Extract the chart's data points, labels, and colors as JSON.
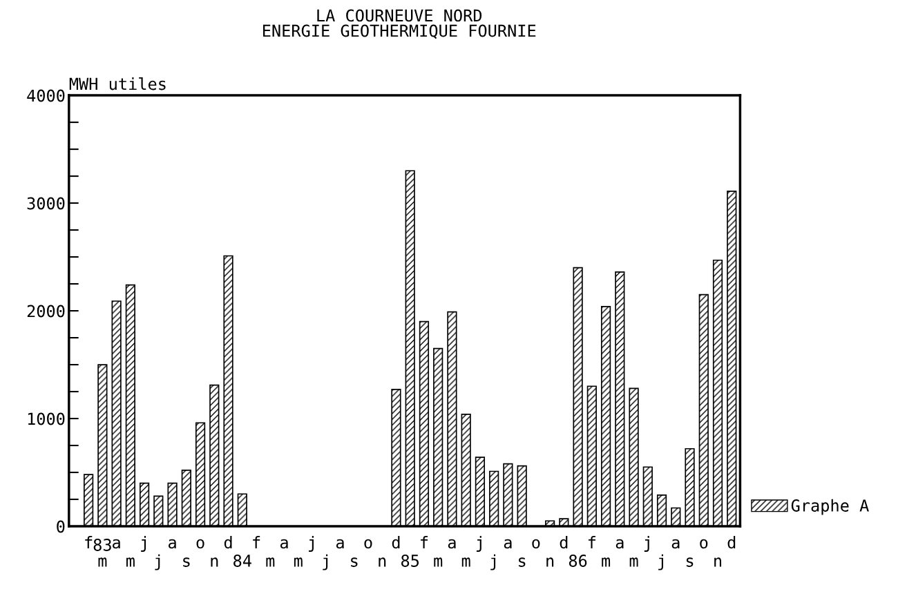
{
  "chart_data": {
    "type": "bar",
    "title": "LA COURNEUVE NORD\nENERGIE GEOTHERMIQUE FOURNIE",
    "ylabel": "MWH utiles",
    "categories": [
      "f",
      "m",
      "a",
      "m",
      "j",
      "j",
      "a",
      "s",
      "o",
      "n",
      "d",
      "84",
      "f",
      "m",
      "a",
      "m",
      "j",
      "j",
      "a",
      "s",
      "o",
      "n",
      "d",
      "85",
      "f",
      "m",
      "a",
      "m",
      "j",
      "j",
      "a",
      "s",
      "o",
      "n",
      "d",
      "86",
      "f",
      "m",
      "a",
      "m",
      "j",
      "j",
      "a",
      "s",
      "o",
      "n",
      "d"
    ],
    "series": [
      {
        "name": "Graphe A",
        "color": "#000000",
        "values": [
          480,
          1500,
          2090,
          2240,
          400,
          280,
          400,
          520,
          960,
          1310,
          2510,
          300,
          null,
          null,
          null,
          null,
          null,
          null,
          null,
          null,
          null,
          null,
          1270,
          3300,
          1900,
          1650,
          1990,
          1040,
          640,
          510,
          580,
          560,
          null,
          50,
          70,
          2400,
          1300,
          2040,
          2360,
          1280,
          550,
          290,
          170,
          720,
          2150,
          2470,
          3110
        ]
      }
    ],
    "ylim": [
      0,
      4000
    ],
    "yticks": [
      0,
      {
        "value": 250,
        "label": null
      },
      {
        "value": 500,
        "label": null
      },
      {
        "value": 750,
        "label": null
      },
      1000,
      {
        "value": 1250,
        "label": null
      },
      {
        "value": 1500,
        "label": null
      },
      {
        "value": 1750,
        "label": null
      },
      2000,
      {
        "value": 2250,
        "label": null
      },
      {
        "value": 2500,
        "label": null
      },
      {
        "value": 2750,
        "label": null
      },
      3000,
      {
        "value": 3250,
        "label": null
      },
      {
        "value": 3500,
        "label": null
      },
      {
        "value": 3750,
        "label": null
      },
      4000
    ],
    "annotations": [
      "83"
    ],
    "legend": "bottom right",
    "grid": false
  }
}
